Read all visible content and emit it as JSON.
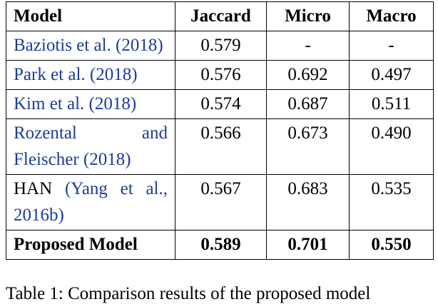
{
  "table": {
    "header": [
      "Model",
      "Jaccard",
      "Micro",
      "Macro"
    ],
    "rows": [
      {
        "cite": "Baziotis et al. (2018)",
        "values": [
          "0.579",
          "-",
          "-"
        ]
      },
      {
        "cite": "Park et al. (2018)",
        "values": [
          "0.576",
          "0.692",
          "0.497"
        ]
      },
      {
        "cite": "Kim et al. (2018)",
        "values": [
          "0.574",
          "0.687",
          "0.511"
        ]
      },
      {
        "cite": "Rozental and Fleischer (2018)",
        "values": [
          "0.566",
          "0.673",
          "0.490"
        ]
      },
      {
        "model": "HAN",
        "cite": "(Yang et al., 2016b)",
        "values": [
          "0.567",
          "0.683",
          "0.535"
        ]
      },
      {
        "model": "Proposed Model",
        "values": [
          "0.589",
          "0.701",
          "0.550"
        ],
        "bold": true
      }
    ]
  },
  "caption": "Table 1: Comparison results of the proposed model"
}
